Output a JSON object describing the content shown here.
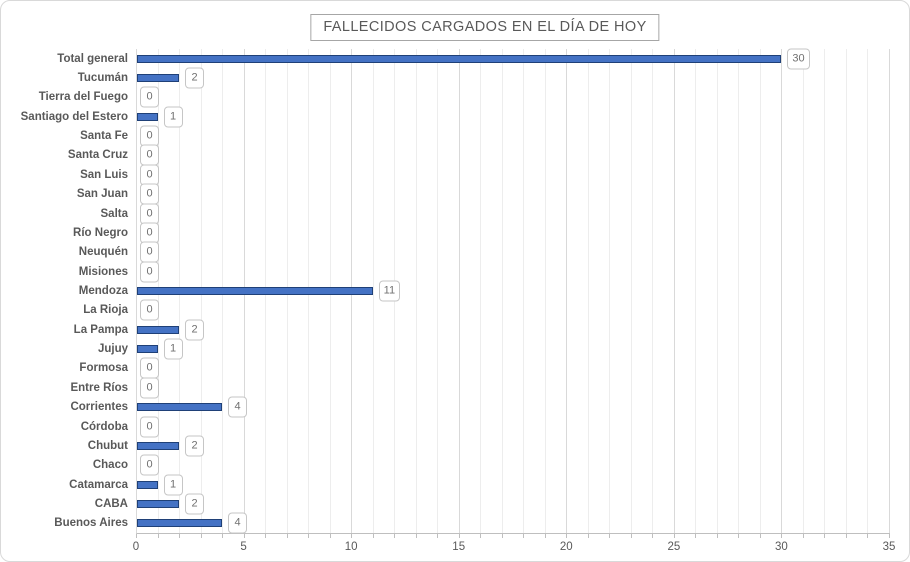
{
  "chart_data": {
    "type": "bar",
    "orientation": "horizontal",
    "title": "FALLECIDOS CARGADOS EN EL DÍA DE HOY",
    "categories": [
      "Total general",
      "Tucumán",
      "Tierra del Fuego",
      "Santiago del Estero",
      "Santa Fe",
      "Santa Cruz",
      "San Luis",
      "San Juan",
      "Salta",
      "Río Negro",
      "Neuquén",
      "Misiones",
      "Mendoza",
      "La Rioja",
      "La Pampa",
      "Jujuy",
      "Formosa",
      "Entre Ríos",
      "Corrientes",
      "Córdoba",
      "Chubut",
      "Chaco",
      "Catamarca",
      "CABA",
      "Buenos Aires"
    ],
    "values": [
      30,
      2,
      0,
      1,
      0,
      0,
      0,
      0,
      0,
      0,
      0,
      0,
      11,
      0,
      2,
      1,
      0,
      0,
      4,
      0,
      2,
      0,
      1,
      2,
      4
    ],
    "xlabel": "",
    "ylabel": "",
    "xlim": [
      0,
      35
    ],
    "xticks": [
      0,
      5,
      10,
      15,
      20,
      25,
      30,
      35
    ],
    "minor_grid_step": 1,
    "major_grid_step": 5,
    "grid": true,
    "legend": false,
    "data_labels": "callout",
    "colors": {
      "bar_fill": "#4472C4",
      "bar_border": "#1F4077",
      "grid_minor": "#EDEDED",
      "grid_major": "#D9D9D9",
      "axis_line": "#BFBFBF",
      "text": "#595959",
      "callout_border": "#C6C6C6",
      "callout_text": "#707070",
      "title_border": "#A6A6A6",
      "background": "#FFFFFF"
    }
  }
}
